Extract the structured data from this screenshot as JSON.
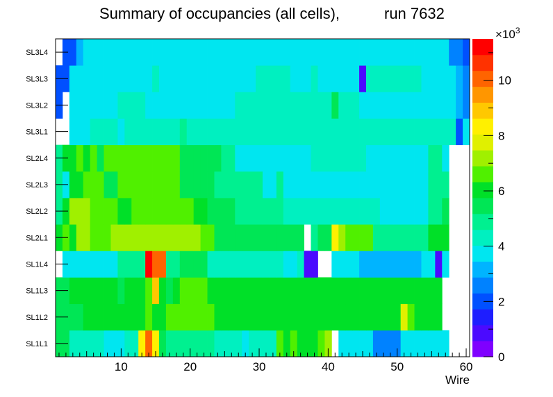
{
  "chart_data": {
    "type": "heatmap",
    "title": "Summary of occupancies (all cells),",
    "title_run": "run 7632",
    "xlabel": "Wire",
    "ylabel": "",
    "x_range": [
      0.5,
      60.5
    ],
    "x_ticks": [
      10,
      20,
      30,
      40,
      50,
      60
    ],
    "z_range": [
      0,
      11.5
    ],
    "z_ticks": [
      0,
      2,
      4,
      6,
      8,
      10
    ],
    "z_multiplier": "×10",
    "z_multiplier_exponent": "3",
    "rows": [
      "SL1L1",
      "SL1L2",
      "SL1L3",
      "SL1L4",
      "SL2L1",
      "SL2L2",
      "SL2L3",
      "SL2L4",
      "SL3L1",
      "SL3L2",
      "SL3L3",
      "SL3L4"
    ],
    "values": [
      [
        5.5,
        5.5,
        4.5,
        4.5,
        4.5,
        4.5,
        4.5,
        4,
        4,
        4,
        4.5,
        4.5,
        8.5,
        10,
        8.5,
        5.5,
        5,
        5,
        5,
        5,
        5,
        5,
        5,
        4.5,
        4.5,
        4.5,
        4.5,
        4,
        4.5,
        4.5,
        4.5,
        4.5,
        6.5,
        6,
        6.5,
        6,
        6,
        6,
        6.5,
        7,
        null,
        3.5,
        3.5,
        3.5,
        3.5,
        3.5,
        2.5,
        2.5,
        2.5,
        2.5,
        3.5,
        3.5,
        3.5,
        3.5,
        3.5,
        3.5,
        3.5,
        null,
        null,
        null
      ],
      [
        5.5,
        5.5,
        5.5,
        5.5,
        6,
        6,
        6,
        6,
        6,
        6,
        6,
        6,
        6,
        6.5,
        6,
        6,
        6.5,
        6.5,
        6.5,
        6.5,
        6.5,
        6.5,
        6.5,
        6,
        6,
        6,
        6,
        6,
        6,
        6,
        6,
        6,
        6,
        6,
        6,
        6,
        6,
        6,
        6,
        6,
        6,
        6,
        6,
        6,
        6,
        6,
        6,
        6,
        6,
        6,
        7.5,
        6.5,
        6,
        6,
        6,
        6,
        null,
        null,
        null,
        null
      ],
      [
        5.5,
        5.5,
        6,
        6,
        6,
        6,
        6,
        6,
        6,
        5.5,
        6,
        6,
        6,
        6.5,
        9,
        6,
        5.5,
        6,
        6.5,
        6.5,
        6.5,
        6.5,
        6,
        6,
        6,
        6,
        6,
        6,
        6,
        6,
        6,
        6,
        6,
        6,
        6,
        6,
        6,
        6,
        6,
        6,
        6,
        6,
        6,
        6,
        6,
        6,
        6,
        6,
        6,
        6,
        6,
        6,
        6,
        6,
        6,
        6,
        null,
        null,
        null,
        null
      ],
      [
        null,
        4,
        4,
        4,
        4,
        4,
        4,
        4,
        4,
        5,
        5,
        5,
        5,
        11,
        10,
        10,
        5,
        5,
        5.5,
        5.5,
        5.5,
        5.5,
        4.5,
        4.5,
        4.5,
        4.5,
        4.5,
        4.5,
        4.5,
        4.5,
        4.5,
        4.5,
        4.5,
        4,
        4,
        4.5,
        1,
        1,
        null,
        null,
        4,
        3.5,
        3.5,
        3.5,
        3,
        3,
        3,
        3,
        3,
        3,
        3,
        3,
        3,
        4,
        4,
        1,
        4,
        null,
        null,
        null
      ],
      [
        6,
        6.5,
        6,
        7,
        7,
        6.5,
        6.5,
        6.5,
        7,
        7,
        7,
        7,
        7,
        7,
        7,
        7,
        7,
        7,
        7,
        7,
        7,
        6.5,
        6.5,
        5.5,
        5.5,
        5.5,
        5.5,
        5.5,
        5.5,
        5.5,
        5.5,
        5.5,
        5.5,
        5.5,
        5.5,
        5.5,
        null,
        5,
        5.5,
        5.5,
        8.5,
        7,
        6.5,
        6.5,
        6.5,
        6.5,
        5,
        5,
        5,
        5,
        5,
        5,
        5,
        5,
        6,
        6,
        6,
        null,
        null,
        null
      ],
      [
        5,
        6,
        7,
        7,
        7,
        6.5,
        6.5,
        6.5,
        6.5,
        6,
        6,
        6.5,
        6.5,
        6.5,
        6.5,
        6.5,
        6.5,
        6.5,
        6.5,
        6.5,
        6,
        6,
        5.5,
        5.5,
        5.5,
        5.5,
        5,
        5,
        5,
        5,
        5,
        5,
        5,
        4.5,
        4.5,
        4.5,
        4.5,
        4.5,
        4.5,
        4.5,
        4.5,
        4.5,
        4.5,
        4.5,
        4.5,
        4.5,
        4.5,
        4,
        4,
        4,
        4,
        4,
        4,
        4,
        5,
        5,
        5.5,
        null,
        null,
        null
      ],
      [
        5,
        4,
        6,
        6,
        6.5,
        6.5,
        6.5,
        5.5,
        5.5,
        6.5,
        6.5,
        6.5,
        6.5,
        6.5,
        6.5,
        6.5,
        6.5,
        6.5,
        5.5,
        5.5,
        5.5,
        5.5,
        5.5,
        5,
        5,
        5,
        5,
        5,
        5,
        5,
        4,
        4,
        5,
        4,
        4,
        4,
        4,
        4,
        4,
        4,
        4,
        4,
        4,
        4,
        4,
        4,
        4,
        4,
        4,
        4,
        4,
        4,
        4,
        4,
        5,
        5,
        5,
        null,
        null,
        null
      ],
      [
        5,
        6,
        6,
        6.5,
        6,
        6.5,
        5.5,
        6.5,
        6.5,
        6.5,
        6.5,
        6.5,
        6.5,
        6.5,
        6.5,
        6.5,
        6.5,
        6.5,
        5.5,
        5.5,
        5.5,
        5.5,
        5.5,
        5.5,
        5,
        5,
        4,
        4,
        4,
        4,
        4,
        4,
        4,
        4,
        4,
        4,
        4,
        4.5,
        4.5,
        4.5,
        4.5,
        4.5,
        4.5,
        4.5,
        4.5,
        4,
        4,
        4,
        4,
        4,
        4,
        4,
        4,
        4,
        5,
        5,
        4,
        null,
        null,
        null
      ],
      [
        null,
        null,
        4,
        4,
        4,
        4.5,
        4.5,
        4.5,
        4.5,
        4,
        4.5,
        4.5,
        4.5,
        4.5,
        4.5,
        4.5,
        4.5,
        4.5,
        5,
        4.5,
        4.5,
        4.5,
        4.5,
        4.5,
        4.5,
        4.5,
        4.5,
        4.5,
        4.5,
        4.5,
        4.5,
        4.5,
        4.5,
        4.5,
        4.5,
        4.5,
        4.5,
        4.5,
        4.5,
        4.5,
        4.5,
        4.5,
        4.5,
        4.5,
        4.5,
        4.5,
        4.5,
        4.5,
        4.5,
        4.5,
        4.5,
        4.5,
        4.5,
        4.5,
        4.5,
        4.5,
        4.5,
        4.5,
        2,
        4
      ],
      [
        2,
        null,
        3.5,
        4,
        4,
        4,
        4,
        4,
        4,
        4.5,
        4.5,
        4.5,
        4.5,
        4,
        4,
        4,
        4,
        4,
        4,
        4,
        4,
        4,
        4,
        4,
        4,
        4,
        4.5,
        4.5,
        4.5,
        4.5,
        4.5,
        4.5,
        4.5,
        4.5,
        4.5,
        4.5,
        4.5,
        4.5,
        4.5,
        4.5,
        5.5,
        4.5,
        4.5,
        4.5,
        4,
        4,
        4,
        4,
        4,
        4,
        4,
        4,
        4,
        4,
        4,
        4,
        4,
        4,
        3,
        2.5
      ],
      [
        2,
        2,
        4,
        4,
        4,
        4,
        4,
        4,
        4,
        4,
        4,
        4,
        4,
        4,
        4.5,
        4,
        4,
        4,
        4,
        4,
        4,
        4,
        4,
        4,
        4,
        4,
        4,
        4,
        4,
        4.5,
        4.5,
        4.5,
        4.5,
        4.5,
        4,
        4,
        4,
        4.5,
        4,
        4,
        4,
        4,
        4,
        4,
        1,
        4.5,
        4.5,
        4.5,
        4.5,
        4.5,
        4.5,
        4.5,
        4.5,
        4,
        4,
        4,
        4,
        4,
        3,
        2.5
      ],
      [
        null,
        2,
        2,
        3,
        4,
        4,
        4,
        4,
        4,
        4,
        4,
        4,
        4,
        4,
        4,
        4,
        4,
        4,
        4,
        4,
        4,
        4,
        4,
        4,
        4,
        4,
        4,
        4,
        4,
        4,
        4,
        4,
        4,
        4,
        4,
        4,
        4,
        4,
        4,
        4,
        4,
        4,
        4,
        4,
        4,
        4,
        4,
        4,
        4,
        4,
        4,
        4,
        4,
        4,
        4,
        4,
        4,
        2.5,
        2.5,
        2
      ]
    ]
  }
}
